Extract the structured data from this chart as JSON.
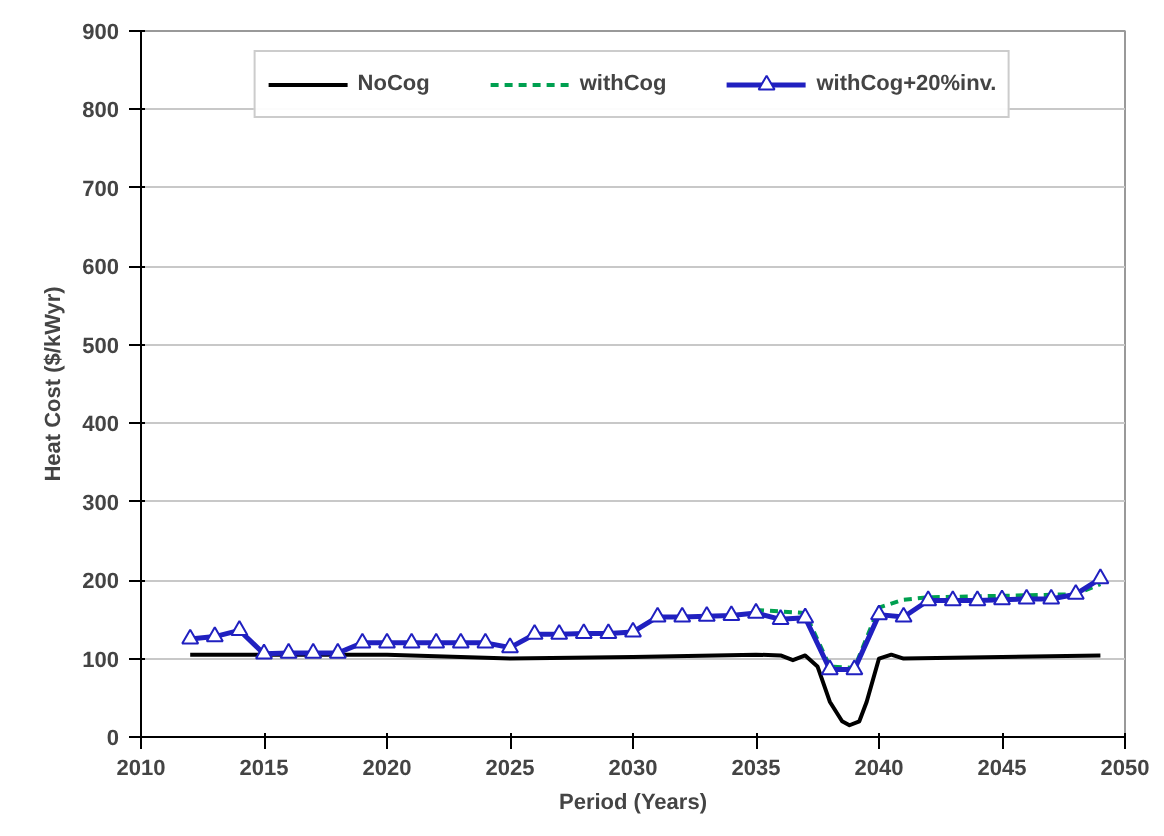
{
  "chart_data": {
    "type": "line",
    "xlabel": "Period (Years)",
    "ylabel": "Heat Cost ($/kWyr)",
    "xlim": [
      2010,
      2050
    ],
    "xticks": [
      2010,
      2015,
      2020,
      2025,
      2030,
      2035,
      2040,
      2045,
      2050
    ],
    "ylim": [
      0,
      900
    ],
    "yticks": [
      0,
      100,
      200,
      300,
      400,
      500,
      600,
      700,
      800,
      900
    ],
    "grid": "y",
    "legend": "top",
    "series": [
      {
        "name": "NoCog",
        "color": "#000000",
        "line_style": "solid",
        "marker": "none",
        "x": [
          2012,
          2015,
          2020,
          2025,
          2030,
          2035,
          2036,
          2036.5,
          2037,
          2037.5,
          2038,
          2038.5,
          2038.8,
          2039.2,
          2039.5,
          2040,
          2040.5,
          2041,
          2045,
          2049
        ],
        "values": [
          105,
          105,
          105,
          100,
          102,
          105,
          104,
          98,
          104,
          90,
          45,
          20,
          15,
          20,
          45,
          100,
          105,
          100,
          102,
          104
        ]
      },
      {
        "name": "withCog",
        "color": "#00a050",
        "line_style": "dashed",
        "marker": "none",
        "x": [
          2035,
          2036,
          2037,
          2038,
          2039,
          2040,
          2041,
          2042,
          2048,
          2049
        ],
        "values": [
          162,
          160,
          158,
          90,
          88,
          165,
          175,
          178,
          182,
          195
        ]
      },
      {
        "name": "withCog+20%inv.",
        "color": "#2020c0",
        "line_style": "solid",
        "marker": "triangle",
        "x": [
          2012,
          2013,
          2014,
          2015,
          2016,
          2017,
          2018,
          2019,
          2020,
          2021,
          2022,
          2023,
          2024,
          2025,
          2026,
          2027,
          2028,
          2029,
          2030,
          2031,
          2032,
          2033,
          2034,
          2035,
          2036,
          2037,
          2038,
          2039,
          2040,
          2041,
          2042,
          2043,
          2044,
          2045,
          2046,
          2047,
          2048,
          2049
        ],
        "values": [
          125,
          128,
          136,
          106,
          107,
          107,
          107,
          120,
          120,
          120,
          120,
          120,
          120,
          114,
          131,
          131,
          132,
          132,
          134,
          153,
          153,
          154,
          155,
          158,
          150,
          152,
          86,
          86,
          156,
          153,
          174,
          174,
          174,
          175,
          176,
          176,
          182,
          202
        ]
      }
    ]
  }
}
